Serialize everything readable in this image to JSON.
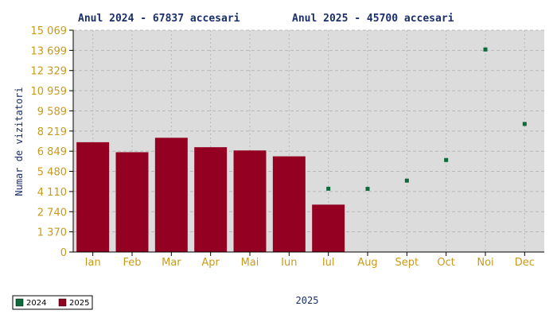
{
  "chart_data": {
    "type": "bar",
    "titles": [
      "Anul 2024 - 67837 accesari",
      "Anul 2025 - 45700 accesari"
    ],
    "ylabel": "Numar de vizitatori",
    "xlabel": "2025",
    "ylim": [
      0,
      15069
    ],
    "yticks": [
      {
        "value": 0,
        "label": "0"
      },
      {
        "value": 1370,
        "label": "1 370"
      },
      {
        "value": 2740,
        "label": "2 740"
      },
      {
        "value": 4110,
        "label": "4 110"
      },
      {
        "value": 5480,
        "label": "5 480"
      },
      {
        "value": 6849,
        "label": "6 849"
      },
      {
        "value": 8219,
        "label": "8 219"
      },
      {
        "value": 9589,
        "label": "9 589"
      },
      {
        "value": 10959,
        "label": "10 959"
      },
      {
        "value": 12329,
        "label": "12 329"
      },
      {
        "value": 13699,
        "label": "13 699"
      },
      {
        "value": 15069,
        "label": "15 069"
      }
    ],
    "categories": [
      "Ian",
      "Feb",
      "Mar",
      "Apr",
      "Mai",
      "Iun",
      "Iul",
      "Aug",
      "Sept",
      "Oct",
      "Noi",
      "Dec"
    ],
    "series": [
      {
        "name": "2024",
        "kind": "point",
        "color": "#0b6b3a",
        "values": [
          null,
          null,
          null,
          null,
          null,
          null,
          4300,
          4290,
          4850,
          6250,
          13760,
          8700
        ]
      },
      {
        "name": "2025",
        "kind": "bar",
        "color": "#930021",
        "values": [
          7460,
          6780,
          7760,
          7120,
          6900,
          6500,
          3220,
          null,
          null,
          null,
          null,
          null
        ]
      }
    ],
    "grid": true,
    "legend": "bottom-left",
    "colors": {
      "plot_bg": "#dcdcdc",
      "grid": "#b8b8b8",
      "axis": "#000000"
    }
  }
}
